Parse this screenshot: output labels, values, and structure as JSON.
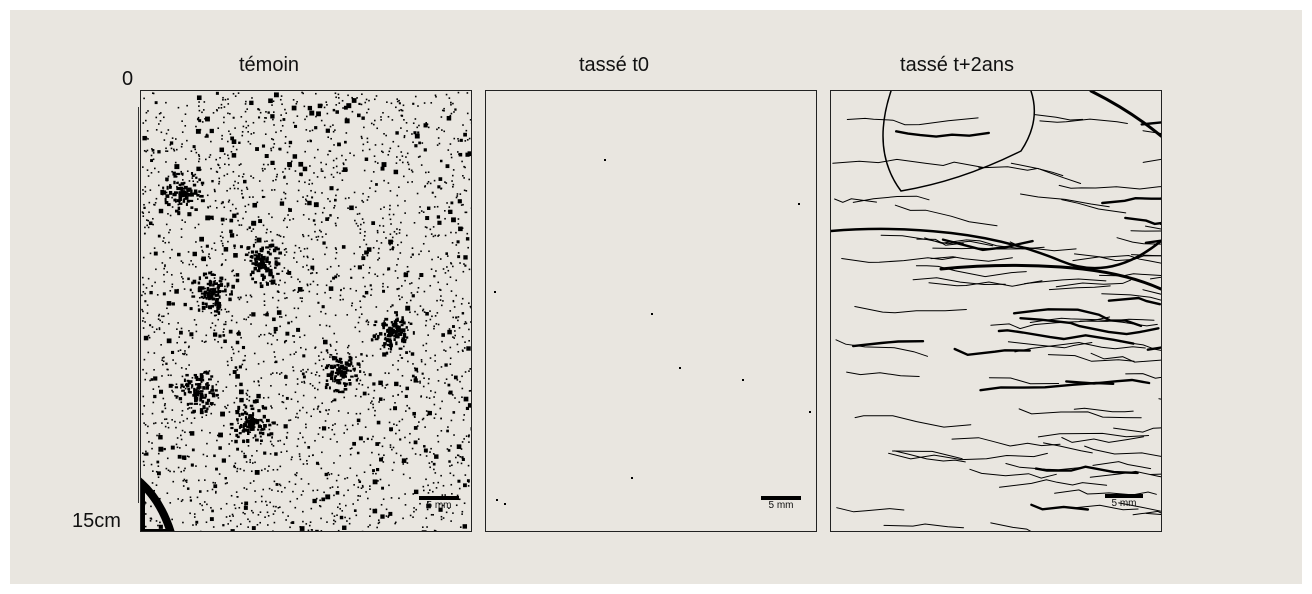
{
  "panels": [
    {
      "title": "témoin",
      "scale_label": "5 mm"
    },
    {
      "title": "tassé t0",
      "scale_label": "5 mm"
    },
    {
      "title": "tassé t+2ans",
      "scale_label": "5 mm"
    }
  ],
  "depth_axis": {
    "top_label": "0",
    "bottom_label": "15cm"
  },
  "colors": {
    "background": "#e9e6e0",
    "pores": "#000000",
    "frame": "#222222"
  }
}
